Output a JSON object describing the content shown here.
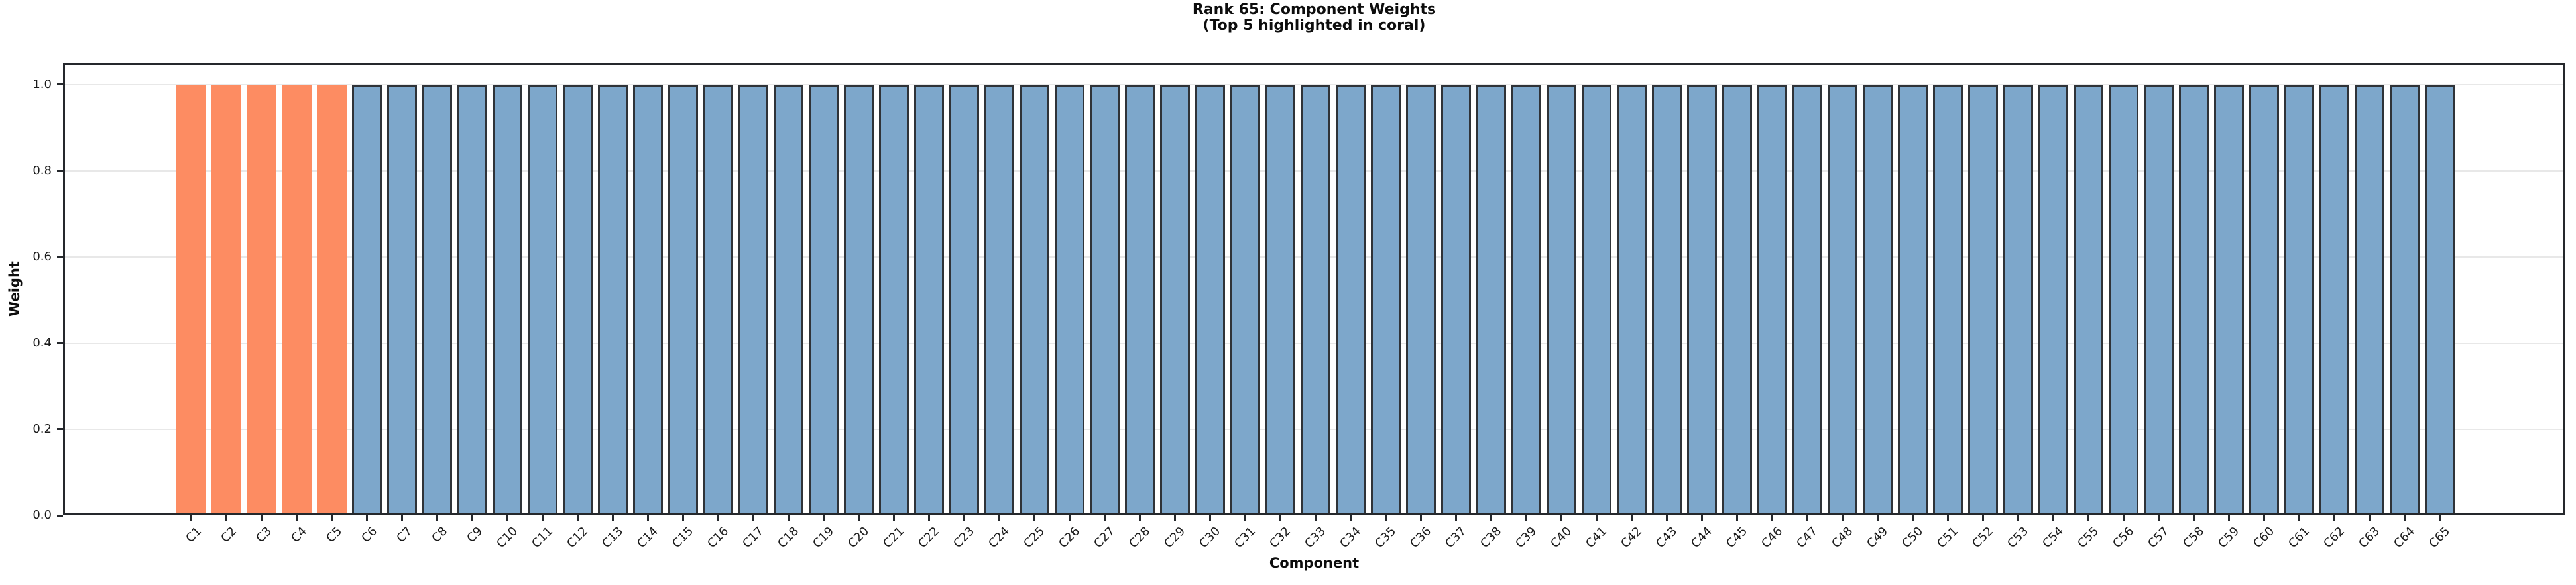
{
  "title": {
    "line1": "Rank 65: Component Weights",
    "line2": "(Top 5 highlighted in coral)"
  },
  "chart_data": {
    "type": "bar",
    "title": "Rank 65: Component Weights (Top 5 highlighted in coral)",
    "xlabel": "Component",
    "ylabel": "Weight",
    "categories": [
      "C1",
      "C2",
      "C3",
      "C4",
      "C5",
      "C6",
      "C7",
      "C8",
      "C9",
      "C10",
      "C11",
      "C12",
      "C13",
      "C14",
      "C15",
      "C16",
      "C17",
      "C18",
      "C19",
      "C20",
      "C21",
      "C22",
      "C23",
      "C24",
      "C25",
      "C26",
      "C27",
      "C28",
      "C29",
      "C30",
      "C31",
      "C32",
      "C33",
      "C34",
      "C35",
      "C36",
      "C37",
      "C38",
      "C39",
      "C40",
      "C41",
      "C42",
      "C43",
      "C44",
      "C45",
      "C46",
      "C47",
      "C48",
      "C49",
      "C50",
      "C51",
      "C52",
      "C53",
      "C54",
      "C55",
      "C56",
      "C57",
      "C58",
      "C59",
      "C60",
      "C61",
      "C62",
      "C63",
      "C64",
      "C65"
    ],
    "values": [
      1.0,
      1.0,
      1.0,
      1.0,
      1.0,
      1.0,
      1.0,
      1.0,
      1.0,
      1.0,
      1.0,
      1.0,
      1.0,
      1.0,
      1.0,
      1.0,
      1.0,
      1.0,
      1.0,
      1.0,
      1.0,
      1.0,
      1.0,
      1.0,
      1.0,
      1.0,
      1.0,
      1.0,
      1.0,
      1.0,
      1.0,
      1.0,
      1.0,
      1.0,
      1.0,
      1.0,
      1.0,
      1.0,
      1.0,
      1.0,
      1.0,
      1.0,
      1.0,
      1.0,
      1.0,
      1.0,
      1.0,
      1.0,
      1.0,
      1.0,
      1.0,
      1.0,
      1.0,
      1.0,
      1.0,
      1.0,
      1.0,
      1.0,
      1.0,
      1.0,
      1.0,
      1.0,
      1.0,
      1.0,
      1.0
    ],
    "highlight": {
      "count": 5,
      "color": "#FD8C62",
      "description": "coral"
    },
    "bar_color": "#7DA7CB",
    "bar_edge_color": "#2F3338",
    "yticks": [
      0.0,
      0.2,
      0.4,
      0.6,
      0.8,
      1.0
    ],
    "ytick_labels": [
      "0.0",
      "0.2",
      "0.4",
      "0.6",
      "0.8",
      "1.0"
    ],
    "ylim": [
      0,
      1.05
    ],
    "grid": true,
    "grid_color": "#e8e8e8",
    "legend": "none",
    "x_tick_rotation_deg": 45
  }
}
